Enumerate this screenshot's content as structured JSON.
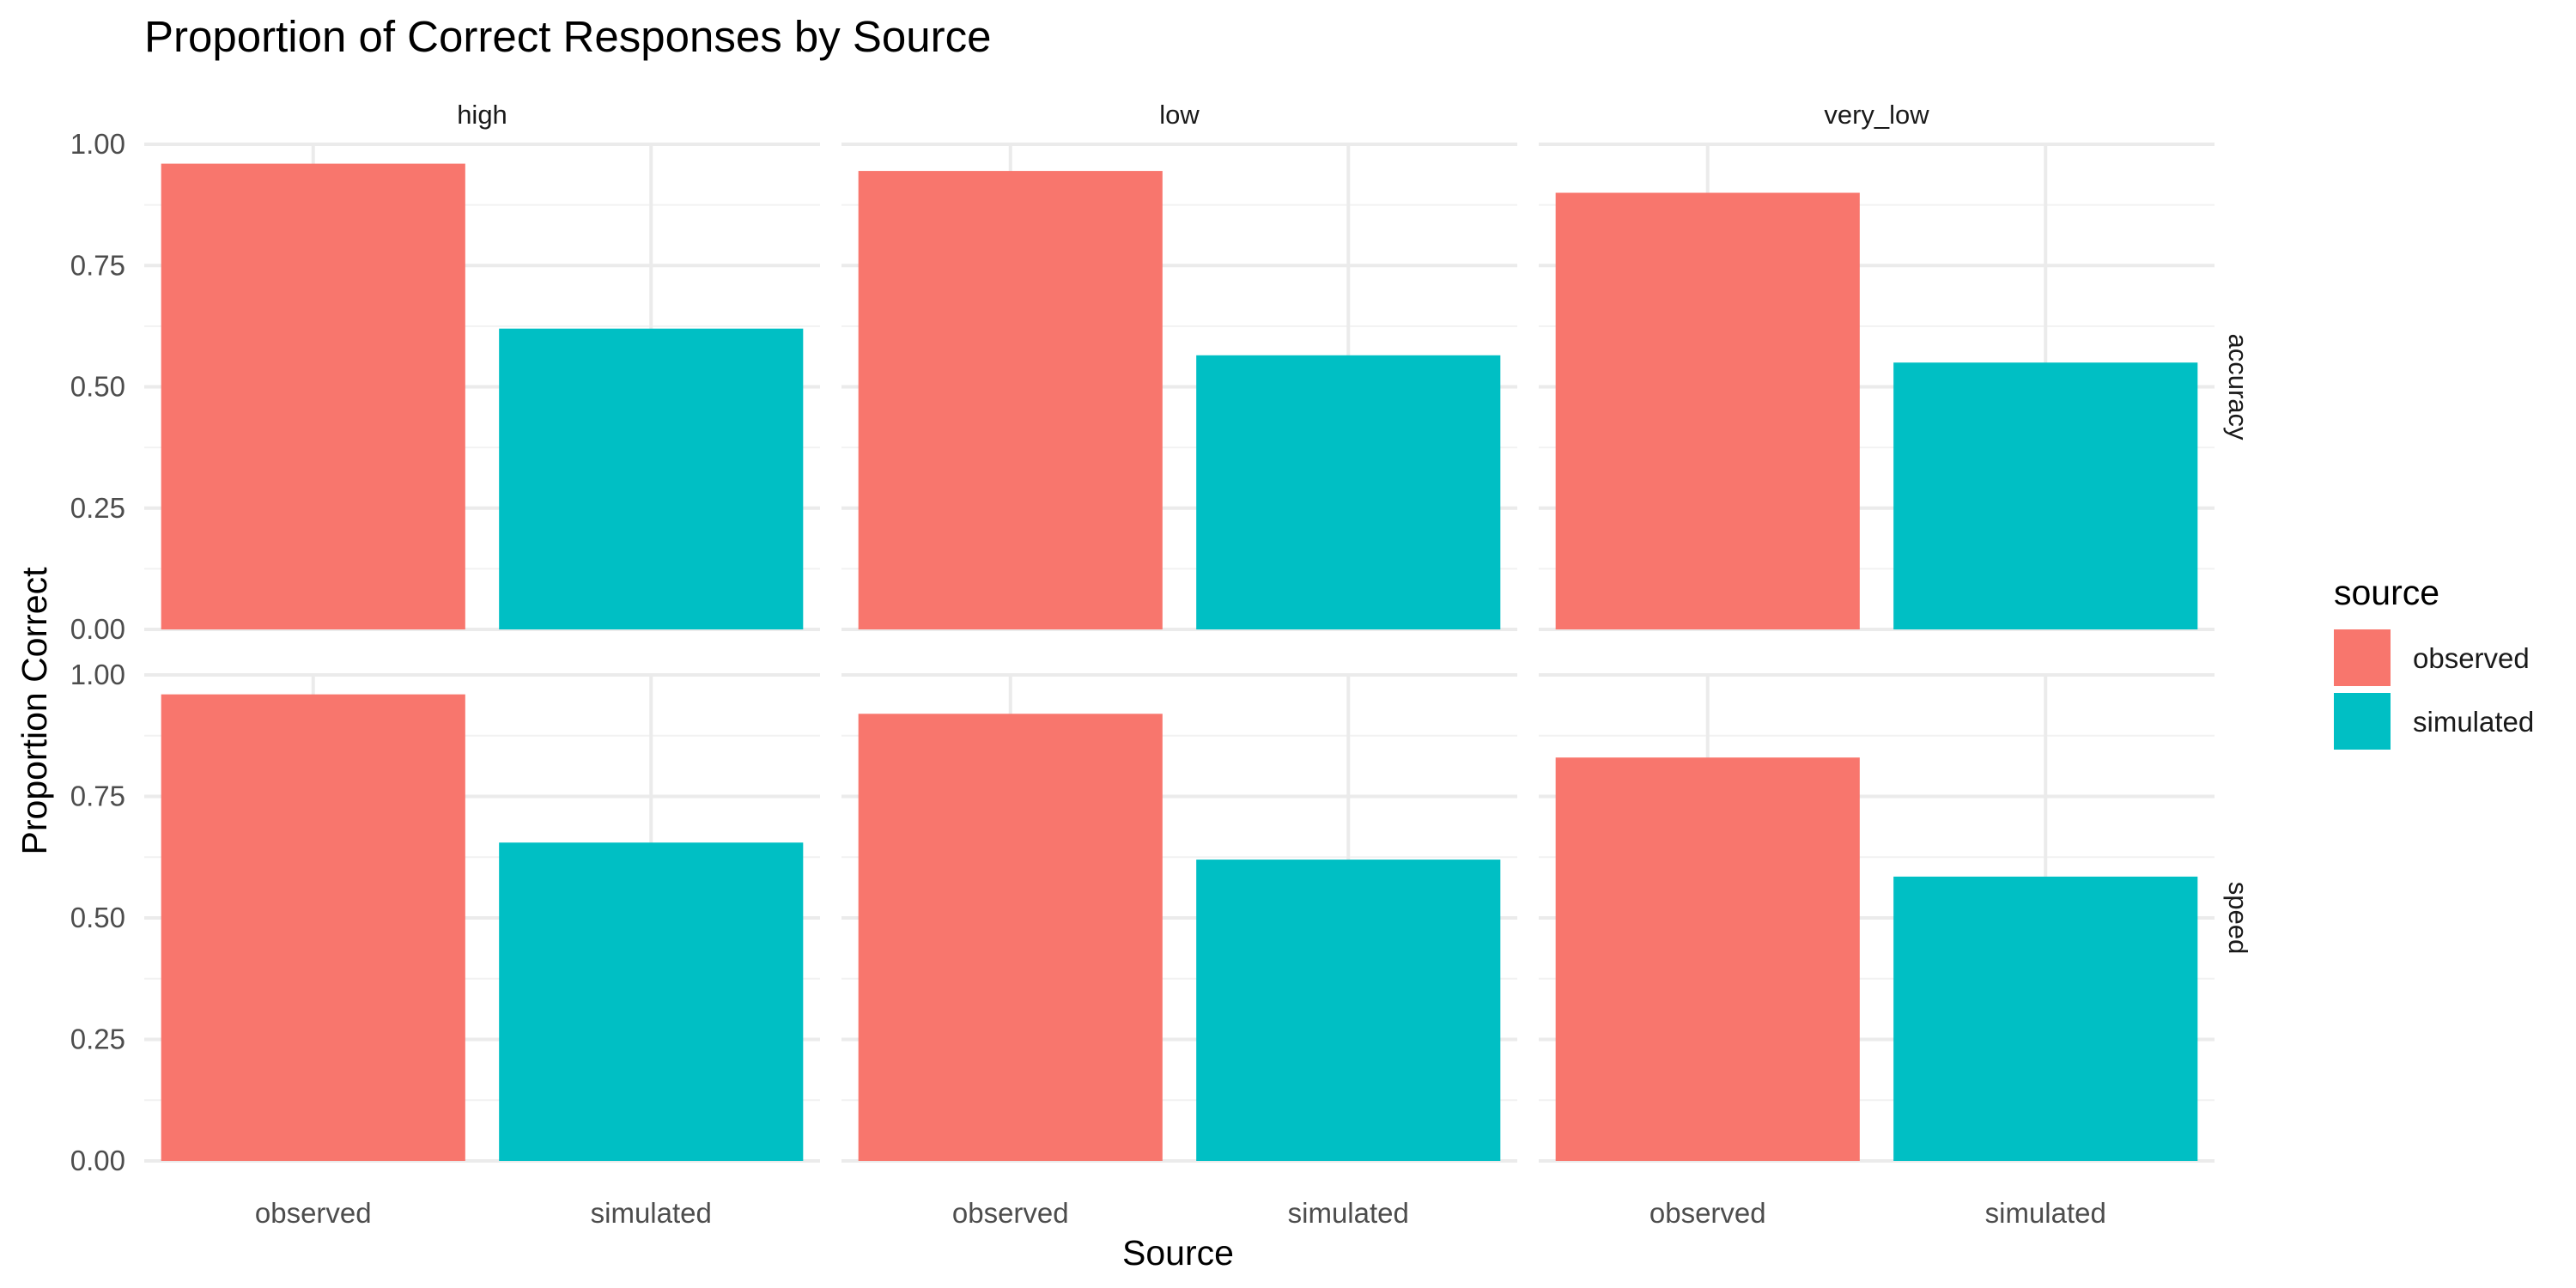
{
  "chart_data": {
    "type": "bar",
    "title": "Proportion of Correct Responses by Source",
    "xlabel": "Source",
    "ylabel": "Proportion Correct",
    "ylim": [
      0,
      1
    ],
    "y_ticks": [
      "0.00",
      "0.25",
      "0.50",
      "0.75",
      "1.00"
    ],
    "categories": [
      "observed",
      "simulated"
    ],
    "facet_columns": [
      "high",
      "low",
      "very_low"
    ],
    "facet_rows": [
      "accuracy",
      "speed"
    ],
    "legend": {
      "title": "source",
      "position": "right",
      "entries": [
        {
          "label": "observed",
          "color": "#F8766D"
        },
        {
          "label": "simulated",
          "color": "#00BFC4"
        }
      ]
    },
    "grid": true,
    "panels": [
      {
        "row": "accuracy",
        "column": "high",
        "values": [
          0.96,
          0.62
        ]
      },
      {
        "row": "accuracy",
        "column": "low",
        "values": [
          0.945,
          0.565
        ]
      },
      {
        "row": "accuracy",
        "column": "very_low",
        "values": [
          0.9,
          0.55
        ]
      },
      {
        "row": "speed",
        "column": "high",
        "values": [
          0.96,
          0.655
        ]
      },
      {
        "row": "speed",
        "column": "low",
        "values": [
          0.92,
          0.62
        ]
      },
      {
        "row": "speed",
        "column": "very_low",
        "values": [
          0.83,
          0.585
        ]
      }
    ]
  }
}
